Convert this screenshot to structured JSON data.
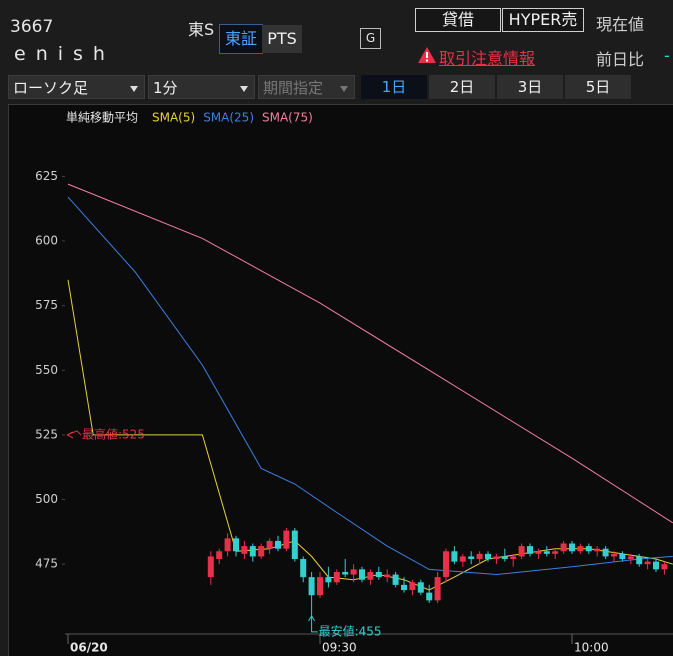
{
  "header": {
    "code": "3667",
    "name": "enish",
    "market_label": "東S",
    "market_buttons": [
      "東証",
      "PTS"
    ],
    "g_button": "G",
    "buttons": [
      "貸借",
      "HYPER売"
    ],
    "current_price_label": "現在値",
    "change_label": "前日比",
    "change_value": "-",
    "alert": "取引注意情報"
  },
  "toolbar": {
    "chart_type": "ローソク足",
    "interval": "1分",
    "period": "期間指定",
    "ranges": [
      "1日",
      "2日",
      "3日",
      "5日"
    ]
  },
  "chart_data": {
    "type": "candlestick",
    "legend_title": "単純移動平均",
    "xlim": [
      0,
      72
    ],
    "xticks": [
      {
        "value": 0,
        "label": "06/20"
      },
      {
        "value": 30,
        "label": "09:30"
      },
      {
        "value": 60,
        "label": "10:00"
      }
    ],
    "ylim": [
      448,
      653
    ],
    "yticks": [
      475,
      500,
      525,
      550,
      575,
      600,
      625
    ],
    "up_color": "#e8304a",
    "down_color": "#35cfcf",
    "candles": {
      "x": [
        17,
        18,
        19,
        20,
        21,
        22,
        23,
        24,
        25,
        26,
        27,
        28,
        29,
        30,
        31,
        32,
        33,
        34,
        35,
        36,
        37,
        38,
        39,
        40,
        41,
        42,
        43,
        44,
        45,
        46,
        47,
        48,
        49,
        50,
        51,
        52,
        53,
        54,
        55,
        56,
        57,
        58,
        59,
        60,
        61,
        62,
        63,
        64,
        65,
        66,
        67,
        68,
        69,
        70,
        71
      ],
      "open": [
        470,
        477,
        480,
        485,
        479,
        482,
        478,
        481,
        484,
        481,
        488,
        477,
        470,
        463,
        470,
        468,
        472,
        471,
        473,
        469,
        472,
        470,
        471,
        467,
        465,
        468,
        464,
        461,
        470,
        480,
        476,
        478,
        477,
        479,
        477,
        478,
        477,
        478,
        482,
        479,
        480,
        479,
        480,
        483,
        480,
        482,
        480,
        481,
        478,
        479,
        477,
        478,
        475,
        476,
        473
      ],
      "high": [
        480,
        481,
        487,
        486,
        484,
        483,
        483,
        485,
        486,
        489,
        489,
        478,
        472,
        472,
        474,
        473,
        477,
        475,
        474,
        473,
        474,
        473,
        472,
        470,
        469,
        469,
        467,
        472,
        481,
        482,
        479,
        480,
        480,
        480,
        479,
        481,
        479,
        483,
        483,
        481,
        482,
        481,
        484,
        484,
        483,
        483,
        482,
        482,
        480,
        480,
        479,
        479,
        477,
        477,
        476
      ],
      "low": [
        467,
        475,
        478,
        478,
        477,
        476,
        477,
        479,
        480,
        480,
        476,
        468,
        455,
        462,
        466,
        467,
        470,
        468,
        468,
        467,
        469,
        468,
        466,
        464,
        463,
        463,
        460,
        460,
        468,
        475,
        474,
        475,
        475,
        476,
        475,
        476,
        474,
        477,
        478,
        477,
        478,
        477,
        479,
        479,
        479,
        479,
        478,
        477,
        476,
        476,
        475,
        474,
        473,
        472,
        471
      ],
      "close": [
        478,
        480,
        485,
        480,
        482,
        478,
        482,
        484,
        481,
        488,
        477,
        470,
        463,
        470,
        468,
        472,
        471,
        473,
        469,
        472,
        470,
        471,
        467,
        465,
        468,
        464,
        461,
        470,
        480,
        476,
        478,
        477,
        479,
        477,
        478,
        477,
        478,
        482,
        479,
        480,
        479,
        480,
        483,
        480,
        482,
        480,
        481,
        478,
        479,
        477,
        478,
        475,
        476,
        473,
        475
      ]
    },
    "series": [
      {
        "name": "SMA(5)",
        "color": "#e6d13a",
        "x": [
          0,
          3,
          16,
          20,
          24,
          27,
          29,
          31,
          34,
          37,
          40,
          43,
          46,
          50,
          54,
          58,
          62,
          66,
          70,
          72
        ],
        "values": [
          585,
          525,
          525,
          480,
          481,
          484,
          478,
          470,
          469,
          471,
          469,
          465,
          470,
          477,
          479,
          481,
          481,
          479,
          477,
          475
        ]
      },
      {
        "name": "SMA(25)",
        "color": "#3f7fe0",
        "x": [
          0,
          8,
          16,
          23,
          27,
          32,
          38,
          43,
          51,
          60,
          68,
          72
        ],
        "values": [
          617,
          588,
          552,
          512,
          506,
          495,
          482,
          473,
          471,
          474,
          477,
          478
        ]
      },
      {
        "name": "SMA(75)",
        "color": "#f07fa0",
        "x": [
          0,
          16,
          30,
          45,
          60,
          72
        ],
        "values": [
          622,
          601,
          576,
          546,
          516,
          491
        ]
      }
    ],
    "annotations": [
      {
        "text": "最高値:525",
        "x": 0,
        "y": 525,
        "color": "#e8304a"
      },
      {
        "text": "最安値:455",
        "x": 29,
        "y": 455,
        "color": "#35cfcf"
      }
    ]
  }
}
